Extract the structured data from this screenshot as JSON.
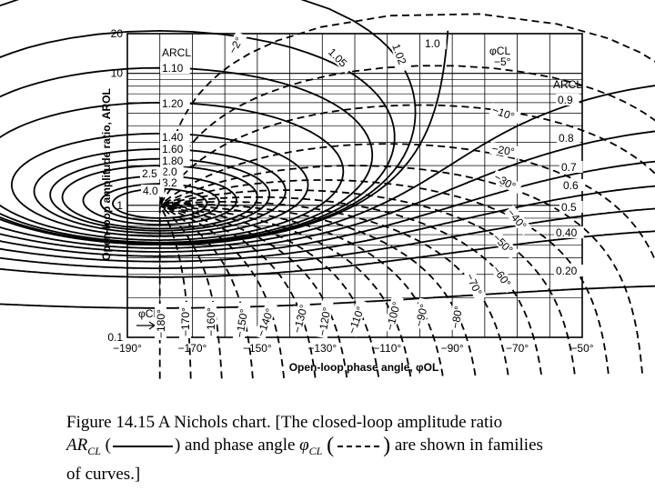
{
  "chart_data": {
    "type": "nichols",
    "xlabel": "Open-loop phase angle, φOL",
    "ylabel": "Open-loop amplitude ratio, AROL",
    "xlim": [
      -190,
      -50
    ],
    "ylim": [
      0.1,
      20
    ],
    "yscale": "log",
    "x_ticks": [
      "−190°",
      "−170°",
      "−150°",
      "−130°",
      "−110°",
      "−90°",
      "−70°",
      "−50°"
    ],
    "y_ticks": [
      "20",
      "10",
      "1",
      "0.1"
    ],
    "ar_cl_header": "ARCL",
    "ar_cl_left_labels": [
      "1.10",
      "1.20",
      "1.40",
      "1.60",
      "1.80",
      "2.0",
      "2.5",
      "3.2",
      "4.0"
    ],
    "ar_cl_top_labels": [
      "1.05",
      "1.02",
      "1.0"
    ],
    "ar_cl_right_labels": [
      "0.9",
      "0.8",
      "0.7",
      "0.6",
      "0.5",
      "0.40",
      "0.20"
    ],
    "phi_cl_header": "φCL",
    "phi_cl_top_labels": [
      "−2°",
      "−5°"
    ],
    "phi_cl_right_labels": [
      "−10°",
      "−20°",
      "−30°",
      "−40°",
      "−50°",
      "−60°",
      "−70°"
    ],
    "phi_cl_bottom_header": "φCL",
    "phi_cl_bottom_labels": [
      "−180°",
      "−170°",
      "−160°",
      "−150°",
      "−140°",
      "−130°",
      "−120°",
      "−110°",
      "−100°",
      "−90°",
      "−80°"
    ]
  },
  "caption": {
    "prefix": "Figure 14.15 A Nichols chart. [The closed-loop amplitude ratio",
    "ar_base": "AR",
    "ar_sub": "CL",
    "open_paren": "(",
    "mid": ") and phase angle",
    "phi_base": "φ",
    "phi_sub": "CL",
    "dash_open": "(",
    "dash_close": ")",
    "suffix": "are shown in families",
    "tail": "of curves.]"
  }
}
